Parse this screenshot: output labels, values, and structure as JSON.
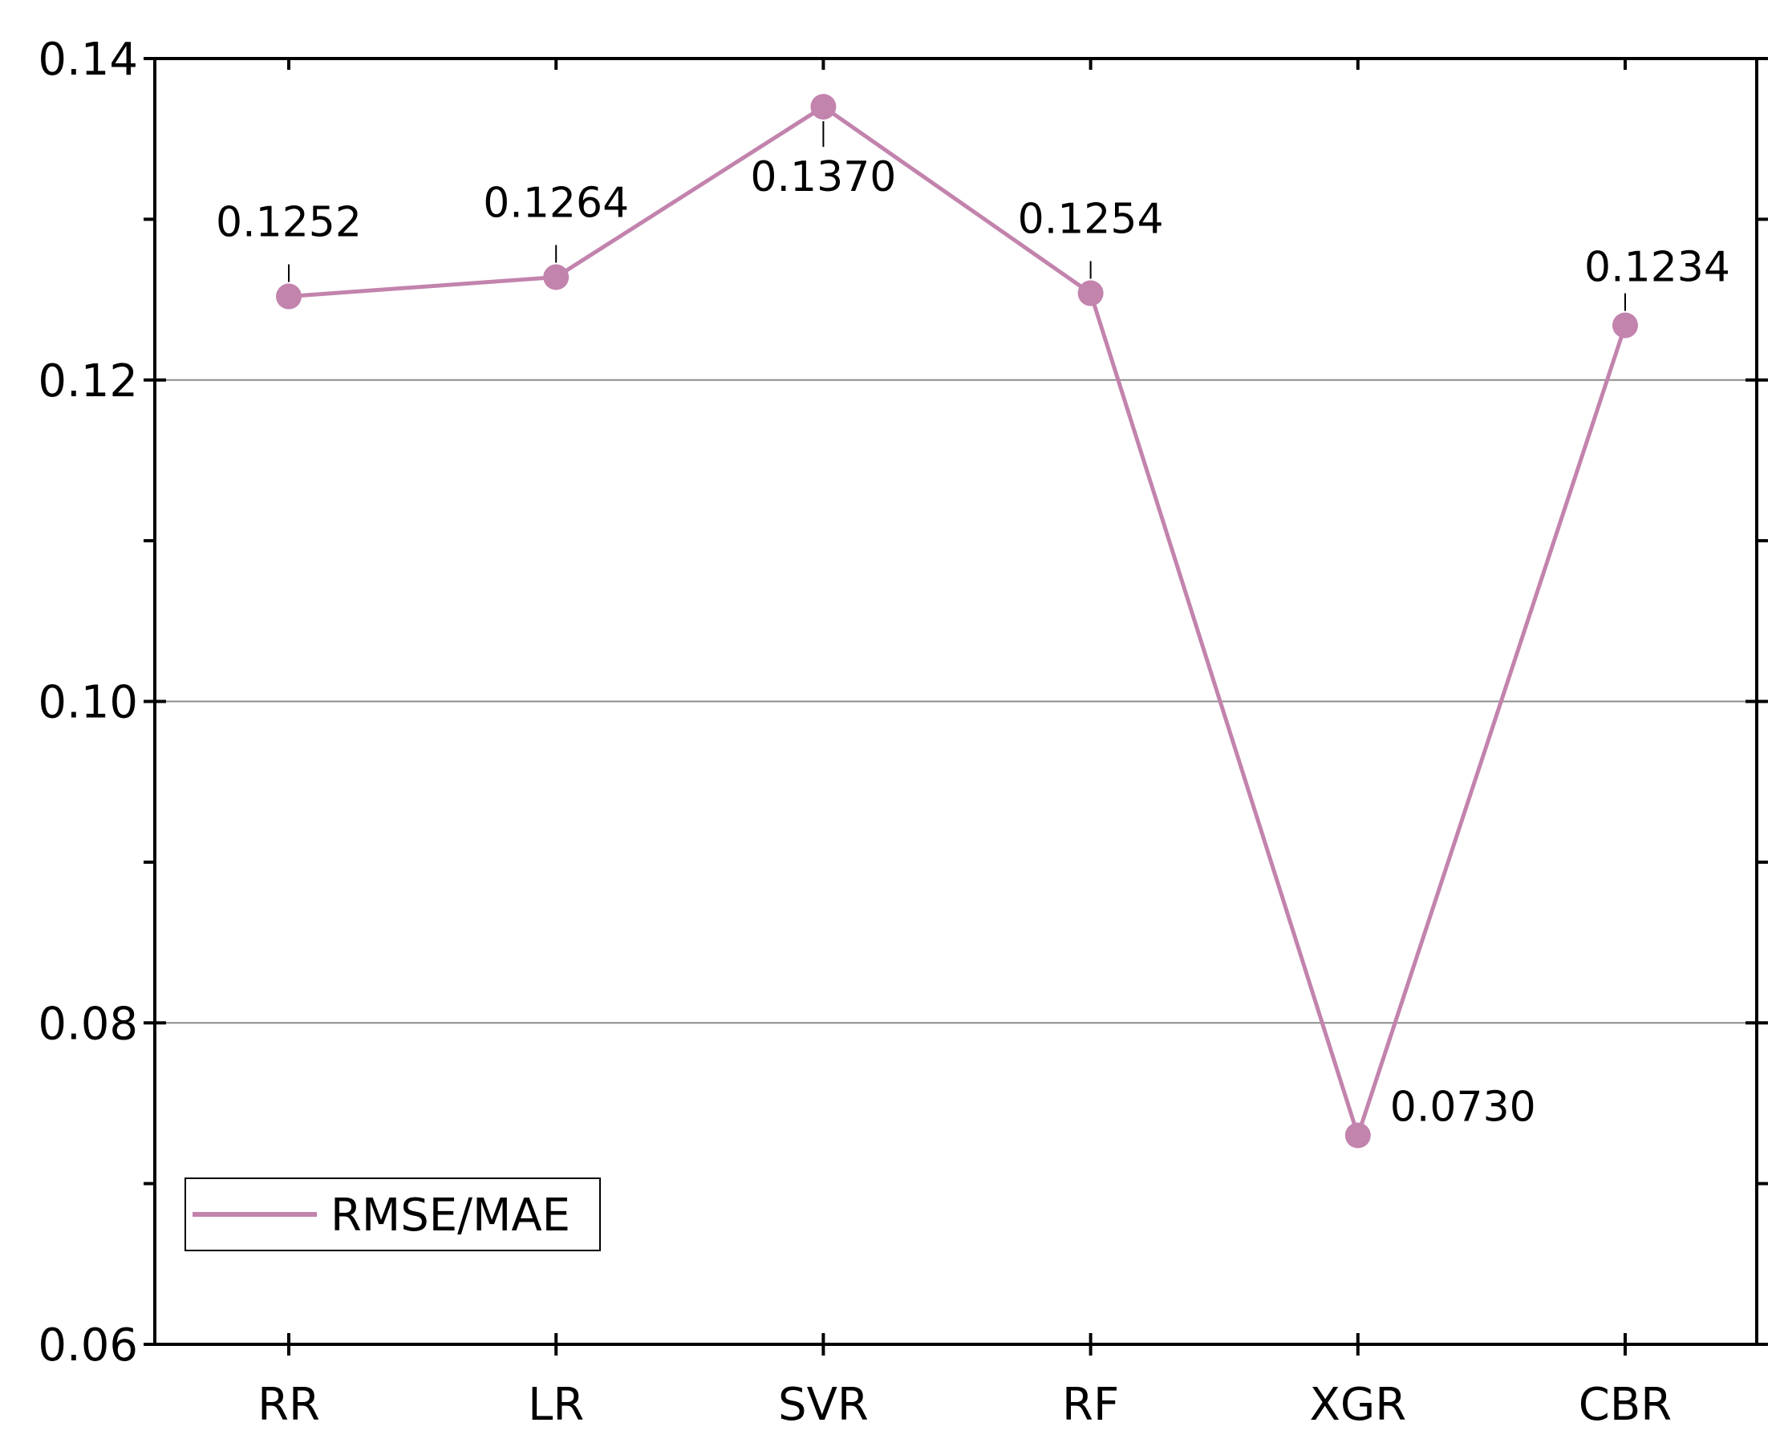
{
  "chart_data": {
    "type": "line",
    "title": "",
    "xlabel": "",
    "ylabel": "",
    "categories": [
      "RR",
      "LR",
      "SVR",
      "RF",
      "XGR",
      "CBR"
    ],
    "series": [
      {
        "name": "RMSE/MAE",
        "values": [
          0.1252,
          0.1264,
          0.137,
          0.1254,
          0.073,
          0.1234
        ],
        "labels": [
          "0.1252",
          "0.1264",
          "0.1370",
          "0.1254",
          "0.0730",
          "0.1234"
        ],
        "color": "#c283ad"
      }
    ],
    "ylim": [
      0.06,
      0.14
    ],
    "yticks": [
      "0.06",
      "0.08",
      "0.10",
      "0.12",
      "0.14"
    ],
    "grid": "horizontal",
    "legend": "bottom-left"
  }
}
